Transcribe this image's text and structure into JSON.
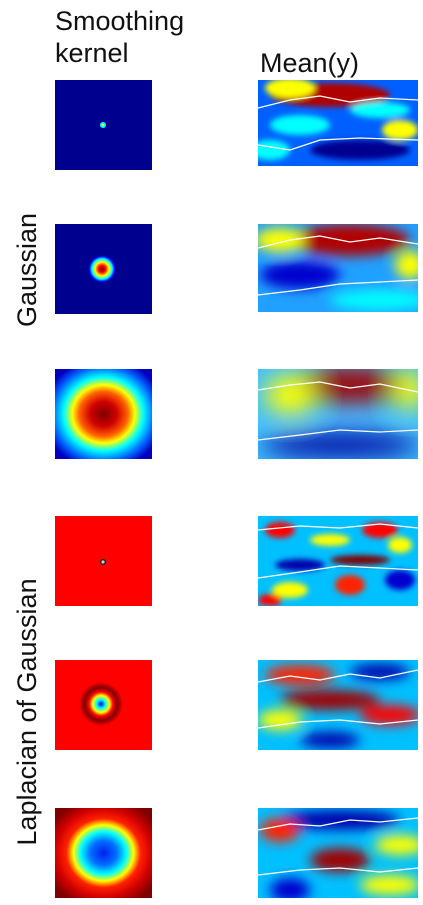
{
  "columns": [
    {
      "lines": [
        "Smoothing",
        "kernel"
      ]
    },
    {
      "lines": [
        "Mean(y)"
      ]
    }
  ],
  "row_groups": [
    {
      "label": "Gaussian"
    },
    {
      "label": "Laplacian of Gaussian"
    }
  ]
}
